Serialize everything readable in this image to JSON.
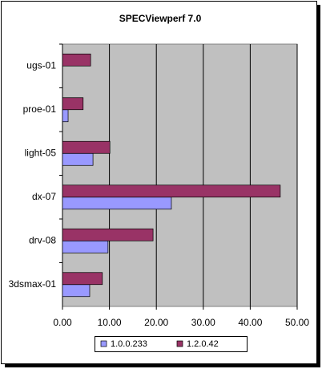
{
  "chart_data": {
    "type": "hbar",
    "title": "SPECViewperf 7.0",
    "categories": [
      "ugs-01",
      "proe-01",
      "light-05",
      "dx-07",
      "drv-08",
      "3dsmax-01"
    ],
    "series": [
      {
        "name": "1.0.0.233",
        "color": "#9999ff",
        "values": [
          null,
          1.2,
          6.5,
          23.2,
          9.7,
          5.8
        ]
      },
      {
        "name": "1.2.0.42",
        "color": "#993366",
        "values": [
          6.0,
          4.4,
          10.1,
          46.4,
          19.3,
          8.5
        ]
      }
    ],
    "xlim": [
      0,
      50
    ],
    "xticks": [
      {
        "value": 0,
        "label": "0.00"
      },
      {
        "value": 10,
        "label": "10.00"
      },
      {
        "value": 20,
        "label": "20.00"
      },
      {
        "value": 30,
        "label": "30.00"
      },
      {
        "value": 40,
        "label": "40.00"
      },
      {
        "value": 50,
        "label": "50.00"
      }
    ],
    "grid": true,
    "legend": "bottom"
  }
}
